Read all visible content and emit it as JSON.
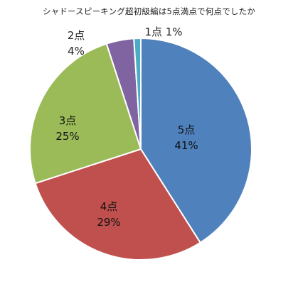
{
  "chart_data": {
    "type": "pie",
    "title": "シャドースピーキング超初級編は5点満点で何点でしたか",
    "categories": [
      "5点",
      "4点",
      "3点",
      "2点",
      "1点"
    ],
    "values": [
      41,
      29,
      25,
      4,
      1
    ],
    "value_labels": [
      "41%",
      "29%",
      "25%",
      "4%",
      "1%"
    ],
    "colors": [
      "#4F81BD",
      "#C0504D",
      "#9BBB59",
      "#8064A2",
      "#4BACC6"
    ],
    "start_angle_deg": 0,
    "direction": "clockwise",
    "legend": "none"
  }
}
